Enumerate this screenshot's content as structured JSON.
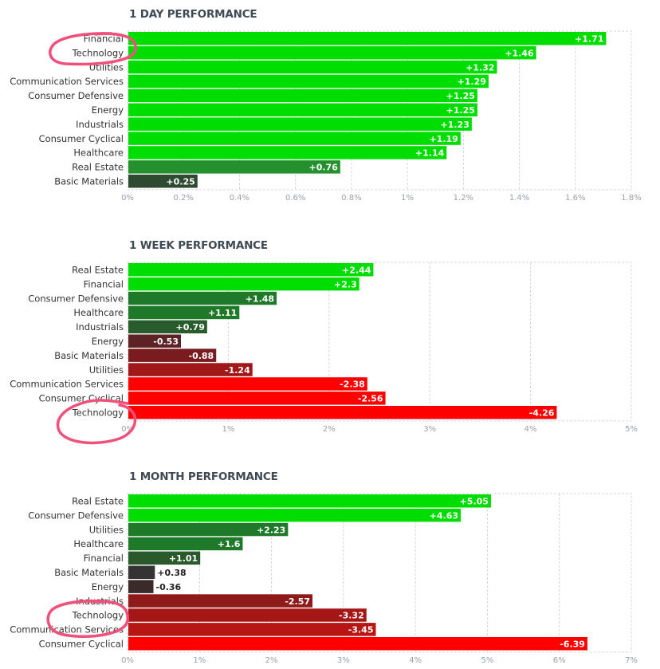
{
  "chart_data": [
    {
      "type": "bar",
      "orientation": "horizontal",
      "title": "1 DAY PERFORMANCE",
      "categories": [
        "Financial",
        "Technology",
        "Utilities",
        "Communication Services",
        "Consumer Defensive",
        "Energy",
        "Industrials",
        "Consumer Cyclical",
        "Healthcare",
        "Real Estate",
        "Basic Materials"
      ],
      "values": [
        1.71,
        1.46,
        1.32,
        1.29,
        1.25,
        1.25,
        1.23,
        1.19,
        1.14,
        0.76,
        0.25
      ],
      "value_labels": [
        "+1.71",
        "+1.46",
        "+1.32",
        "+1.29",
        "+1.25",
        "+1.25",
        "+1.23",
        "+1.19",
        "+1.14",
        "+0.76",
        "+0.25"
      ],
      "xlim": [
        0,
        1.8
      ],
      "ticks": [
        0,
        0.2,
        0.4,
        0.6,
        0.8,
        1.0,
        1.2,
        1.4,
        1.6,
        1.8
      ],
      "tick_labels": [
        "0%",
        "0.2%",
        "0.4%",
        "0.6%",
        "0.8%",
        "1%",
        "1.2%",
        "1.4%",
        "1.6%",
        "1.8%"
      ],
      "grid": true,
      "colors": [
        "#00dd00",
        "#00dd00",
        "#00dd00",
        "#00dd00",
        "#00dd00",
        "#00dd00",
        "#00dd00",
        "#00dd00",
        "#00dd00",
        "#24912e",
        "#2e4a30"
      ]
    },
    {
      "type": "bar",
      "orientation": "horizontal",
      "title": "1 WEEK PERFORMANCE",
      "categories": [
        "Real Estate",
        "Financial",
        "Consumer Defensive",
        "Healthcare",
        "Industrials",
        "Energy",
        "Basic Materials",
        "Utilities",
        "Communication Services",
        "Consumer Cyclical",
        "Technology"
      ],
      "values": [
        2.44,
        2.3,
        1.48,
        1.11,
        0.79,
        -0.53,
        -0.88,
        -1.24,
        -2.38,
        -2.56,
        -4.26
      ],
      "value_labels": [
        "+2.44",
        "+2.3",
        "+1.48",
        "+1.11",
        "+0.79",
        "-0.53",
        "-0.88",
        "-1.24",
        "-2.38",
        "-2.56",
        "-4.26"
      ],
      "xlim": [
        0,
        5
      ],
      "ticks": [
        0,
        1,
        2,
        3,
        4,
        5
      ],
      "tick_labels": [
        "0%",
        "1%",
        "2%",
        "3%",
        "4%",
        "5%"
      ],
      "grid": true,
      "colors": [
        "#00dd00",
        "#00dd00",
        "#1e7a28",
        "#1e7a28",
        "#285c2c",
        "#5c2226",
        "#7a1c1f",
        "#a01818",
        "#ff0000",
        "#ff0000",
        "#ff0000"
      ]
    },
    {
      "type": "bar",
      "orientation": "horizontal",
      "title": "1 MONTH PERFORMANCE",
      "categories": [
        "Real Estate",
        "Consumer Defensive",
        "Utilities",
        "Healthcare",
        "Financial",
        "Basic Materials",
        "Energy",
        "Industrials",
        "Technology",
        "Communication Services",
        "Consumer Cyclical"
      ],
      "values": [
        5.05,
        4.63,
        2.23,
        1.6,
        1.01,
        0.38,
        -0.36,
        -2.57,
        -3.32,
        -3.45,
        -6.39
      ],
      "value_labels": [
        "+5.05",
        "+4.63",
        "+2.23",
        "+1.6",
        "+1.01",
        "+0.38",
        "-0.36",
        "-2.57",
        "-3.32",
        "-3.45",
        "-6.39"
      ],
      "xlim": [
        0,
        7
      ],
      "ticks": [
        0,
        1,
        2,
        3,
        4,
        5,
        6,
        7
      ],
      "tick_labels": [
        "0%",
        "1%",
        "2%",
        "3%",
        "4%",
        "5%",
        "6%",
        "7%"
      ],
      "grid": true,
      "colors": [
        "#00dd00",
        "#00dd00",
        "#1e7a28",
        "#1e7a28",
        "#2a5a2c",
        "#343434",
        "#3a2a2a",
        "#8e1a1a",
        "#a51717",
        "#b81515",
        "#ff0000"
      ]
    }
  ],
  "annotations": {
    "highlight_color": "#f0507a",
    "highlighted_category": "Technology"
  }
}
